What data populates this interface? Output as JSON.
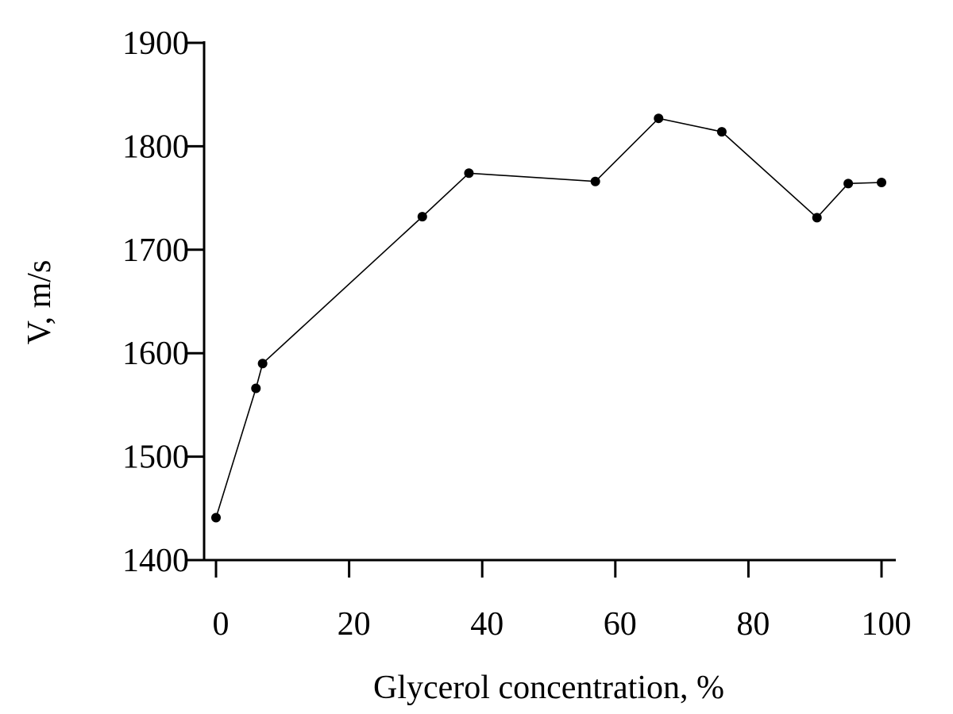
{
  "chart_data": {
    "type": "line",
    "title": "",
    "xlabel": "Glycerol concentration, %",
    "ylabel": "V, m/s",
    "xlim": [
      0,
      100
    ],
    "ylim": [
      1400,
      1900
    ],
    "x_ticks": [
      0,
      20,
      40,
      60,
      80,
      100
    ],
    "y_ticks": [
      1400,
      1500,
      1600,
      1700,
      1800,
      1900
    ],
    "x_tick_labels": [
      "0",
      "20",
      "40",
      "60",
      "80",
      "100"
    ],
    "y_tick_labels": [
      "1400",
      "1500",
      "1600",
      "1700",
      "1800",
      "1900"
    ],
    "grid": false,
    "markers": true,
    "colors": {
      "line": "#000000",
      "marker": "#000000",
      "axis": "#000000"
    },
    "series": [
      {
        "x": [
          0,
          6,
          7,
          31,
          38,
          57,
          66.5,
          76,
          90.3,
          95,
          100
        ],
        "y": [
          1441,
          1566,
          1590,
          1732,
          1774,
          1766,
          1827,
          1814,
          1731,
          1764,
          1765
        ]
      }
    ]
  }
}
